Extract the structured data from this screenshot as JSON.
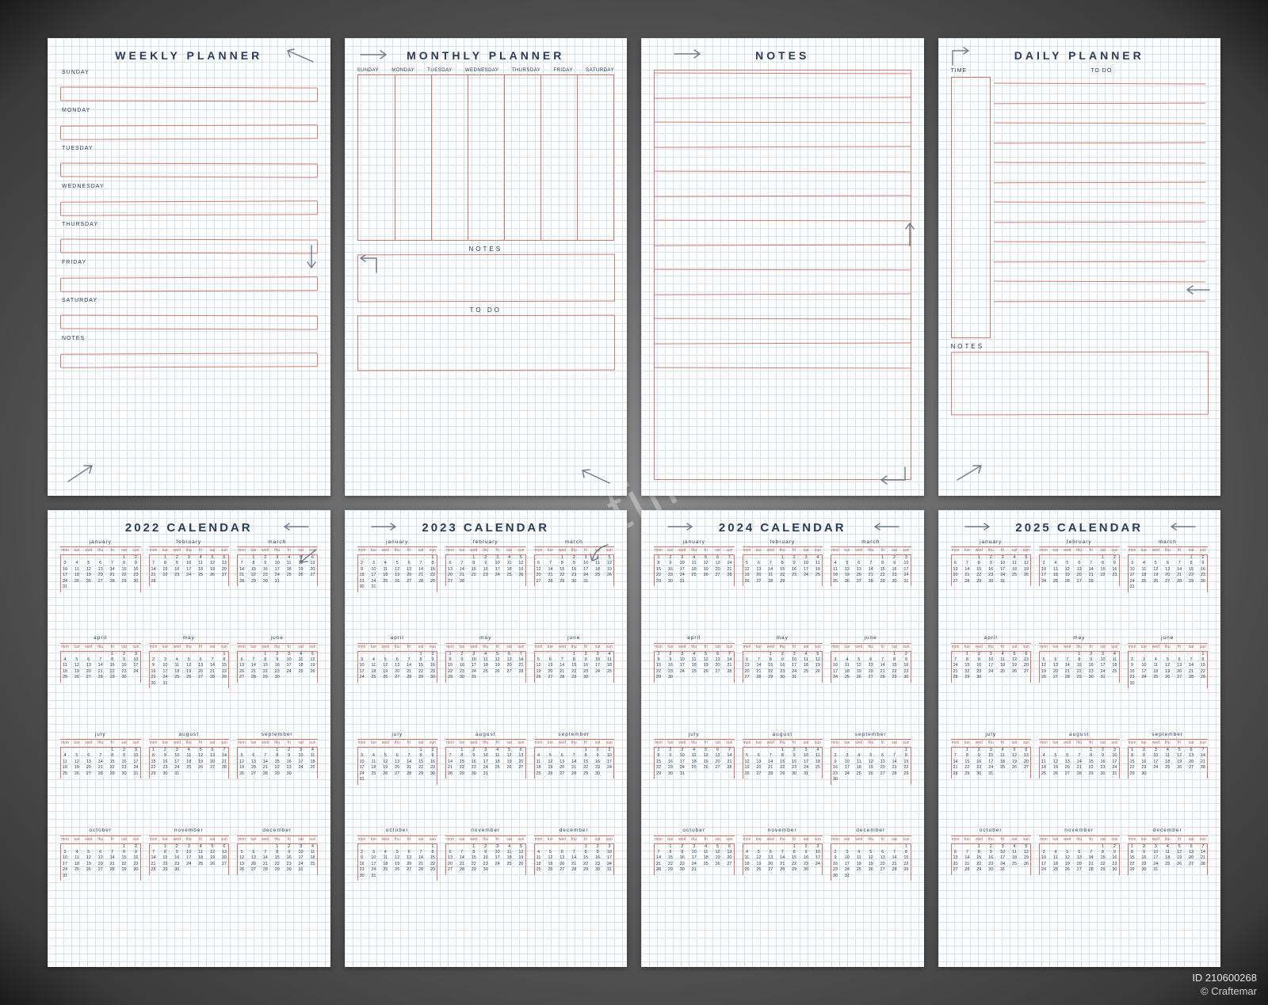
{
  "colors": {
    "ink": "#2a3b58",
    "rule": "#d2796f",
    "gridline": "#d7e4ef",
    "paper": "#ffffff",
    "bg_inner": "#8a8a8a",
    "bg_outer": "#1a1a1a",
    "watermark": "rgba(230,230,230,.45)"
  },
  "watermark_text": "dreamstime.com",
  "attribution": {
    "id": "ID 210600268",
    "author": "© Craftemar"
  },
  "dow_short": [
    "mon",
    "tue",
    "wed",
    "thu",
    "fri",
    "sat",
    "sun"
  ],
  "pages": {
    "weekly": {
      "title": "WEEKLY PLANNER",
      "days": [
        "SUNDAY",
        "MONDAY",
        "TUESDAY",
        "WEDNESDAY",
        "THURSDAY",
        "FRIDAY",
        "SATURDAY",
        "NOTES"
      ]
    },
    "monthly": {
      "title": "MONTHLY PLANNER",
      "columns": [
        "SUNDAY",
        "MONDAY",
        "TUESDAY",
        "WEDNESDAY",
        "THURSDAY",
        "FRIDAY",
        "SATURDAY"
      ],
      "sections": [
        "NOTES",
        "TO DO"
      ]
    },
    "notes": {
      "title": "NOTES",
      "line_count": 13
    },
    "daily": {
      "title": "DAILY PLANNER",
      "time_label": "TIME",
      "todo_label": "TO DO",
      "notes_label": "NOTES",
      "todo_lines": 12
    }
  },
  "calendars": [
    {
      "title": "2022 CALENDAR",
      "months": [
        {
          "name": "january",
          "start": 5,
          "days": 31
        },
        {
          "name": "february",
          "start": 1,
          "days": 28
        },
        {
          "name": "march",
          "start": 1,
          "days": 31
        },
        {
          "name": "april",
          "start": 4,
          "days": 30
        },
        {
          "name": "may",
          "start": 6,
          "days": 31
        },
        {
          "name": "june",
          "start": 2,
          "days": 30
        },
        {
          "name": "july",
          "start": 4,
          "days": 31
        },
        {
          "name": "august",
          "start": 0,
          "days": 31
        },
        {
          "name": "september",
          "start": 3,
          "days": 30
        },
        {
          "name": "october",
          "start": 5,
          "days": 31
        },
        {
          "name": "november",
          "start": 1,
          "days": 30
        },
        {
          "name": "december",
          "start": 3,
          "days": 31
        }
      ]
    },
    {
      "title": "2023 CALENDAR",
      "months": [
        {
          "name": "january",
          "start": 6,
          "days": 31
        },
        {
          "name": "february",
          "start": 2,
          "days": 28
        },
        {
          "name": "march",
          "start": 2,
          "days": 31
        },
        {
          "name": "april",
          "start": 5,
          "days": 30
        },
        {
          "name": "may",
          "start": 0,
          "days": 31
        },
        {
          "name": "june",
          "start": 3,
          "days": 30
        },
        {
          "name": "july",
          "start": 5,
          "days": 31
        },
        {
          "name": "august",
          "start": 1,
          "days": 31
        },
        {
          "name": "september",
          "start": 4,
          "days": 30
        },
        {
          "name": "october",
          "start": 6,
          "days": 31
        },
        {
          "name": "november",
          "start": 2,
          "days": 30
        },
        {
          "name": "december",
          "start": 4,
          "days": 31
        }
      ]
    },
    {
      "title": "2024 CALENDAR",
      "months": [
        {
          "name": "january",
          "start": 0,
          "days": 31
        },
        {
          "name": "february",
          "start": 3,
          "days": 29
        },
        {
          "name": "march",
          "start": 4,
          "days": 31
        },
        {
          "name": "april",
          "start": 0,
          "days": 30
        },
        {
          "name": "may",
          "start": 2,
          "days": 31
        },
        {
          "name": "june",
          "start": 5,
          "days": 30
        },
        {
          "name": "july",
          "start": 0,
          "days": 31
        },
        {
          "name": "august",
          "start": 3,
          "days": 31
        },
        {
          "name": "september",
          "start": 6,
          "days": 30
        },
        {
          "name": "october",
          "start": 1,
          "days": 31
        },
        {
          "name": "november",
          "start": 4,
          "days": 30
        },
        {
          "name": "december",
          "start": 6,
          "days": 31
        }
      ]
    },
    {
      "title": "2025 CALENDAR",
      "months": [
        {
          "name": "january",
          "start": 2,
          "days": 31
        },
        {
          "name": "february",
          "start": 5,
          "days": 28
        },
        {
          "name": "march",
          "start": 5,
          "days": 31
        },
        {
          "name": "april",
          "start": 1,
          "days": 30
        },
        {
          "name": "may",
          "start": 3,
          "days": 31
        },
        {
          "name": "june",
          "start": 6,
          "days": 30
        },
        {
          "name": "july",
          "start": 1,
          "days": 31
        },
        {
          "name": "august",
          "start": 4,
          "days": 31
        },
        {
          "name": "september",
          "start": 0,
          "days": 30
        },
        {
          "name": "october",
          "start": 2,
          "days": 31
        },
        {
          "name": "november",
          "start": 5,
          "days": 30
        },
        {
          "name": "december",
          "start": 0,
          "days": 31
        }
      ]
    }
  ]
}
